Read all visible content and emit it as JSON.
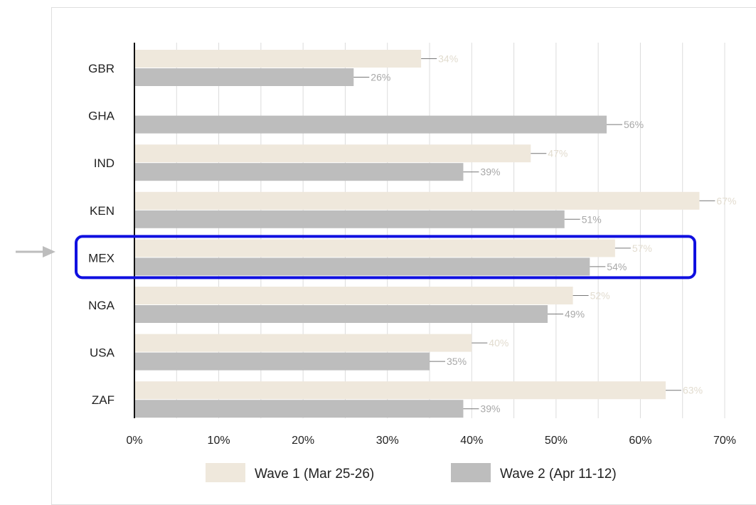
{
  "colors": {
    "wave1": "#efe8dc",
    "wave2": "#bdbdbd",
    "wave1_label": "#e2dccf",
    "wave2_label": "#a8a8a8",
    "grid": "#dcdcdc",
    "axis": "#111111",
    "highlight": "#1010e0",
    "arrow": "#bdbdbd"
  },
  "highlight": {
    "category": "MEX"
  },
  "chart_data": {
    "type": "bar",
    "orientation": "horizontal",
    "categories": [
      "GBR",
      "GHA",
      "IND",
      "KEN",
      "MEX",
      "NGA",
      "USA",
      "ZAF"
    ],
    "series": [
      {
        "name": "Wave 1 (Mar 25-26)",
        "values": [
          34,
          null,
          47,
          67,
          57,
          52,
          40,
          63
        ],
        "labels": [
          "34%",
          "",
          "47%",
          "67%",
          "57%",
          "52%",
          "40%",
          "63%"
        ]
      },
      {
        "name": "Wave 2 (Apr 11-12)",
        "values": [
          26,
          56,
          39,
          51,
          54,
          49,
          35,
          39
        ],
        "labels": [
          "26%",
          "56%",
          "39%",
          "51%",
          "54%",
          "49%",
          "35%",
          "39%"
        ]
      }
    ],
    "xlim": [
      0,
      70
    ],
    "xticks": [
      0,
      10,
      20,
      30,
      40,
      50,
      60,
      70
    ],
    "xtick_labels": [
      "0%",
      "10%",
      "20%",
      "30%",
      "40%",
      "50%",
      "60%",
      "70%"
    ],
    "grid": true,
    "legend_position": "bottom"
  }
}
